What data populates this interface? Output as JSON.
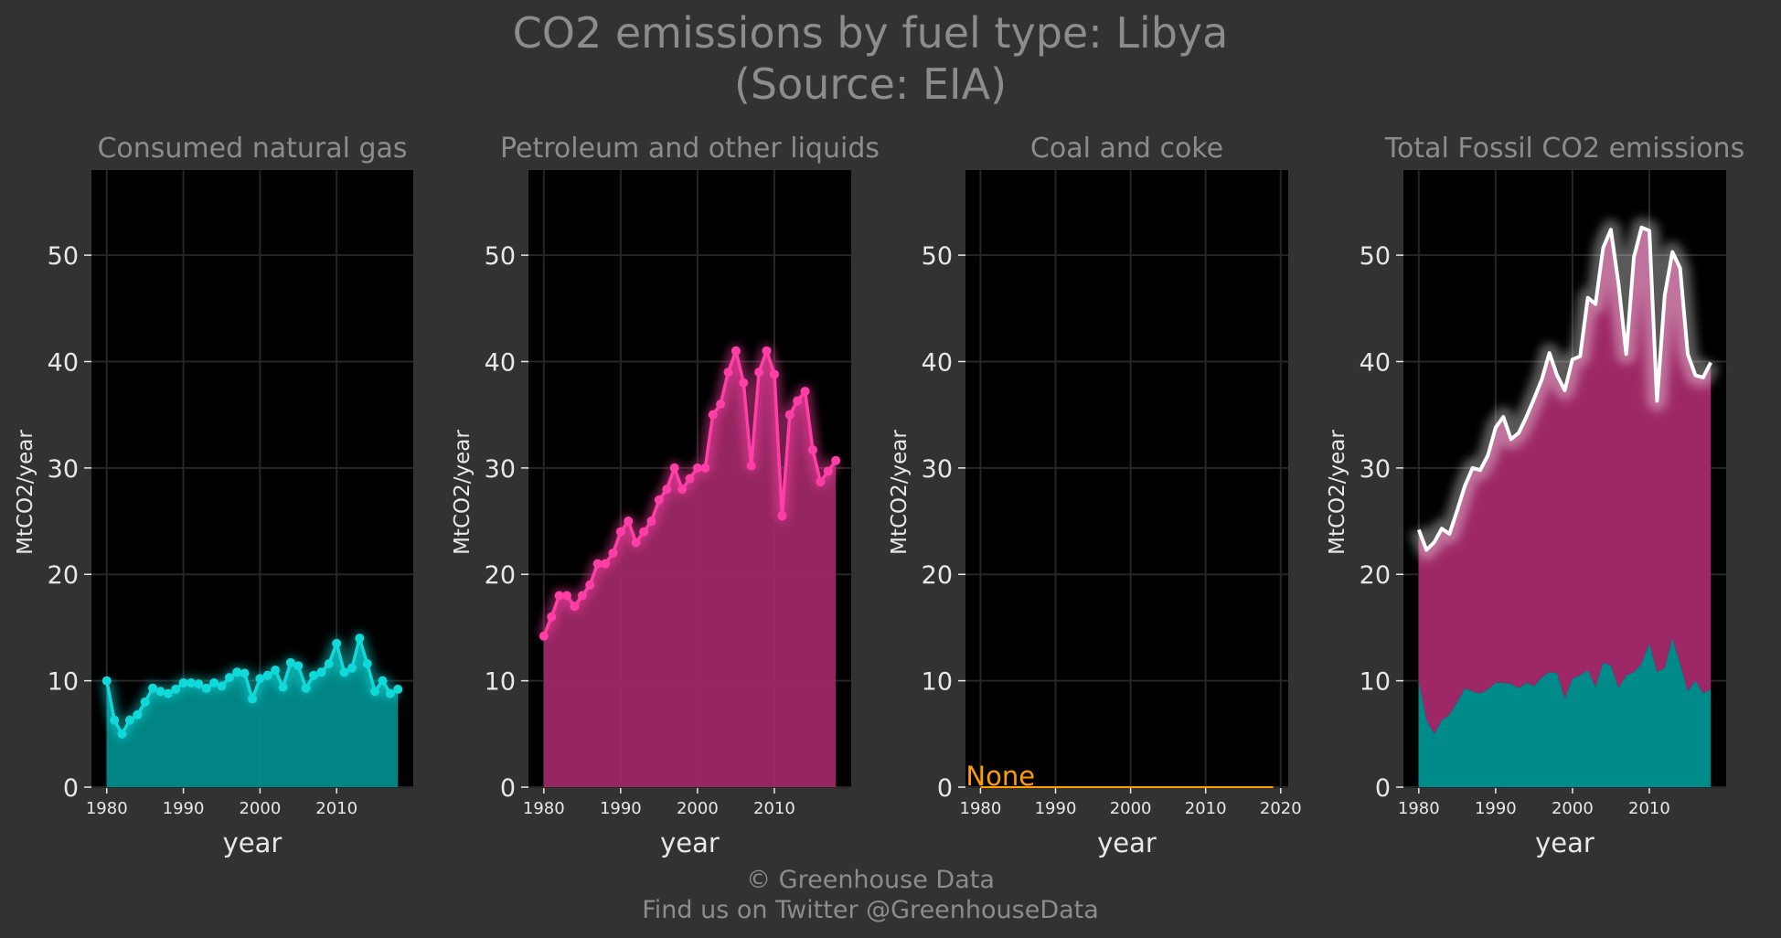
{
  "title_line1": "CO2 emissions by fuel type: Libya",
  "title_line2": "(Source: EIA)",
  "footer_line1": "© Greenhouse Data",
  "footer_line2": "Find us on Twitter @GreenhouseData",
  "colors": {
    "background": "#323232",
    "panel": "#000000",
    "grid": "#262626",
    "title_text": "#8c8c8c",
    "tick_text": "#e8e8e8",
    "gas": "#10d9d9",
    "gas_fill": "#008b8b",
    "petroleum": "#ff3fa6",
    "petroleum_fill": "#9e2867",
    "coal": "#ff9c00",
    "total_line": "#ffffff"
  },
  "chart_data": [
    {
      "type": "area",
      "title": "Consumed natural gas",
      "xlabel": "year",
      "ylabel": "MtCO2/year",
      "xlim": [
        1978,
        2020
      ],
      "ylim": [
        0,
        58
      ],
      "xticks": [
        1980,
        1990,
        2000,
        2010
      ],
      "yticks": [
        0,
        10,
        20,
        30,
        40,
        50
      ],
      "grid": true,
      "x": [
        1980,
        1981,
        1982,
        1983,
        1984,
        1985,
        1986,
        1987,
        1988,
        1989,
        1990,
        1991,
        1992,
        1993,
        1994,
        1995,
        1996,
        1997,
        1998,
        1999,
        2000,
        2001,
        2002,
        2003,
        2004,
        2005,
        2006,
        2007,
        2008,
        2009,
        2010,
        2011,
        2012,
        2013,
        2014,
        2015,
        2016,
        2017,
        2018
      ],
      "series": [
        {
          "values": [
            10.0,
            6.3,
            5.0,
            6.3,
            6.8,
            8.0,
            9.3,
            9.0,
            8.8,
            9.2,
            9.8,
            9.8,
            9.7,
            9.3,
            9.8,
            9.5,
            10.3,
            10.8,
            10.7,
            8.3,
            10.2,
            10.5,
            11.0,
            9.4,
            11.7,
            11.4,
            9.3,
            10.5,
            10.8,
            11.6,
            13.5,
            10.8,
            11.2,
            14.0,
            11.6,
            9.0,
            10.0,
            8.8,
            9.2
          ]
        }
      ]
    },
    {
      "type": "area",
      "title": "Petroleum and other liquids",
      "xlabel": "year",
      "ylabel": "MtCO2/year",
      "xlim": [
        1978,
        2020
      ],
      "ylim": [
        0,
        58
      ],
      "xticks": [
        1980,
        1990,
        2000,
        2010
      ],
      "yticks": [
        0,
        10,
        20,
        30,
        40,
        50
      ],
      "grid": true,
      "x": [
        1980,
        1981,
        1982,
        1983,
        1984,
        1985,
        1986,
        1987,
        1988,
        1989,
        1990,
        1991,
        1992,
        1993,
        1994,
        1995,
        1996,
        1997,
        1998,
        1999,
        2000,
        2001,
        2002,
        2003,
        2004,
        2005,
        2006,
        2007,
        2008,
        2009,
        2010,
        2011,
        2012,
        2013,
        2014,
        2015,
        2016,
        2017,
        2018
      ],
      "series": [
        {
          "values": [
            14.2,
            16.0,
            18.0,
            18.0,
            17.0,
            18.0,
            19.0,
            21.0,
            21.0,
            22.0,
            24.0,
            25.0,
            23.0,
            24.0,
            25.0,
            27.0,
            28.0,
            30.0,
            28.0,
            29.0,
            30.0,
            30.0,
            35.0,
            36.0,
            39.0,
            41.0,
            38.0,
            30.2,
            39.0,
            41.0,
            38.8,
            25.5,
            35.0,
            36.3,
            37.2,
            31.7,
            28.7,
            29.7,
            30.7
          ]
        }
      ]
    },
    {
      "type": "line",
      "title": "Coal and coke",
      "xlabel": "year",
      "ylabel": "MtCO2/year",
      "xlim": [
        1978,
        2021
      ],
      "ylim": [
        0,
        58
      ],
      "xticks": [
        1980,
        1990,
        2000,
        2010,
        2020
      ],
      "yticks": [
        0,
        10,
        20,
        30,
        40,
        50
      ],
      "grid": true,
      "annotation": "None",
      "x": [
        1980,
        2019
      ],
      "series": [
        {
          "values": [
            0,
            0
          ]
        }
      ]
    },
    {
      "type": "area",
      "title": "Total Fossil CO2 emissions",
      "xlabel": "year",
      "ylabel": "MtCO2/year",
      "xlim": [
        1978,
        2020
      ],
      "ylim": [
        0,
        58
      ],
      "xticks": [
        1980,
        1990,
        2000,
        2010
      ],
      "yticks": [
        0,
        10,
        20,
        30,
        40,
        50
      ],
      "grid": true,
      "stacked": true,
      "x": [
        1980,
        1981,
        1982,
        1983,
        1984,
        1985,
        1986,
        1987,
        1988,
        1989,
        1990,
        1991,
        1992,
        1993,
        1994,
        1995,
        1996,
        1997,
        1998,
        1999,
        2000,
        2001,
        2002,
        2003,
        2004,
        2005,
        2006,
        2007,
        2008,
        2009,
        2010,
        2011,
        2012,
        2013,
        2014,
        2015,
        2016,
        2017,
        2018
      ],
      "series": [
        {
          "values": [
            10.0,
            6.3,
            5.0,
            6.3,
            6.8,
            8.0,
            9.3,
            9.0,
            8.8,
            9.2,
            9.8,
            9.8,
            9.7,
            9.3,
            9.8,
            9.5,
            10.3,
            10.8,
            10.7,
            8.3,
            10.2,
            10.5,
            11.0,
            9.4,
            11.7,
            11.4,
            9.3,
            10.5,
            10.8,
            11.6,
            13.5,
            10.8,
            11.2,
            14.0,
            11.6,
            9.0,
            10.0,
            8.8,
            9.2
          ]
        },
        {
          "values": [
            14.2,
            16.0,
            18.0,
            18.0,
            17.0,
            18.0,
            19.0,
            21.0,
            21.0,
            22.0,
            24.0,
            25.0,
            23.0,
            24.0,
            25.0,
            27.0,
            28.0,
            30.0,
            28.0,
            29.0,
            30.0,
            30.0,
            35.0,
            36.0,
            39.0,
            41.0,
            38.0,
            30.2,
            39.0,
            41.0,
            38.8,
            25.5,
            35.0,
            36.3,
            37.2,
            31.7,
            28.7,
            29.7,
            30.7
          ]
        }
      ]
    }
  ]
}
